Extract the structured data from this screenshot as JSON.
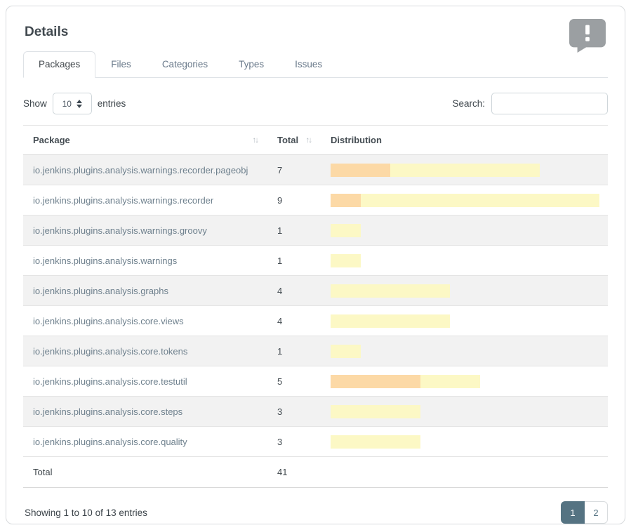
{
  "title": "Details",
  "tabs": [
    {
      "label": "Packages",
      "active": true
    },
    {
      "label": "Files",
      "active": false
    },
    {
      "label": "Categories",
      "active": false
    },
    {
      "label": "Types",
      "active": false
    },
    {
      "label": "Issues",
      "active": false
    }
  ],
  "controls": {
    "show_label": "Show",
    "page_length": "10",
    "entries_label": "entries",
    "search_label": "Search:",
    "search_value": ""
  },
  "table": {
    "columns": [
      {
        "label": "Package",
        "sortable": true
      },
      {
        "label": "Total",
        "sortable": true
      },
      {
        "label": "Distribution",
        "sortable": false
      }
    ],
    "max_total": 9,
    "rows": [
      {
        "package": "io.jenkins.plugins.analysis.warnings.recorder.pageobj",
        "total": 7,
        "high": 2,
        "normal": 5
      },
      {
        "package": "io.jenkins.plugins.analysis.warnings.recorder",
        "total": 9,
        "high": 1,
        "normal": 8
      },
      {
        "package": "io.jenkins.plugins.analysis.warnings.groovy",
        "total": 1,
        "high": 0,
        "normal": 1
      },
      {
        "package": "io.jenkins.plugins.analysis.warnings",
        "total": 1,
        "high": 0,
        "normal": 1
      },
      {
        "package": "io.jenkins.plugins.analysis.graphs",
        "total": 4,
        "high": 0,
        "normal": 4
      },
      {
        "package": "io.jenkins.plugins.analysis.core.views",
        "total": 4,
        "high": 0,
        "normal": 4
      },
      {
        "package": "io.jenkins.plugins.analysis.core.tokens",
        "total": 1,
        "high": 0,
        "normal": 1
      },
      {
        "package": "io.jenkins.plugins.analysis.core.testutil",
        "total": 5,
        "high": 3,
        "normal": 2
      },
      {
        "package": "io.jenkins.plugins.analysis.core.steps",
        "total": 3,
        "high": 0,
        "normal": 3
      },
      {
        "package": "io.jenkins.plugins.analysis.core.quality",
        "total": 3,
        "high": 0,
        "normal": 3
      }
    ],
    "footer": {
      "label": "Total",
      "total": "41"
    }
  },
  "pagination": {
    "info": "Showing 1 to 10 of 13 entries",
    "pages": [
      {
        "label": "1",
        "active": true
      },
      {
        "label": "2",
        "active": false
      }
    ]
  },
  "icons": {
    "feedback": "comment-exclamation-icon",
    "sort_up": "↑",
    "sort_down": "↓"
  },
  "colors": {
    "severity_high": "#fcd9a6",
    "severity_normal": "#fcf8c5",
    "page_active": "#557382",
    "icon_gray": "#9b9fa2"
  }
}
